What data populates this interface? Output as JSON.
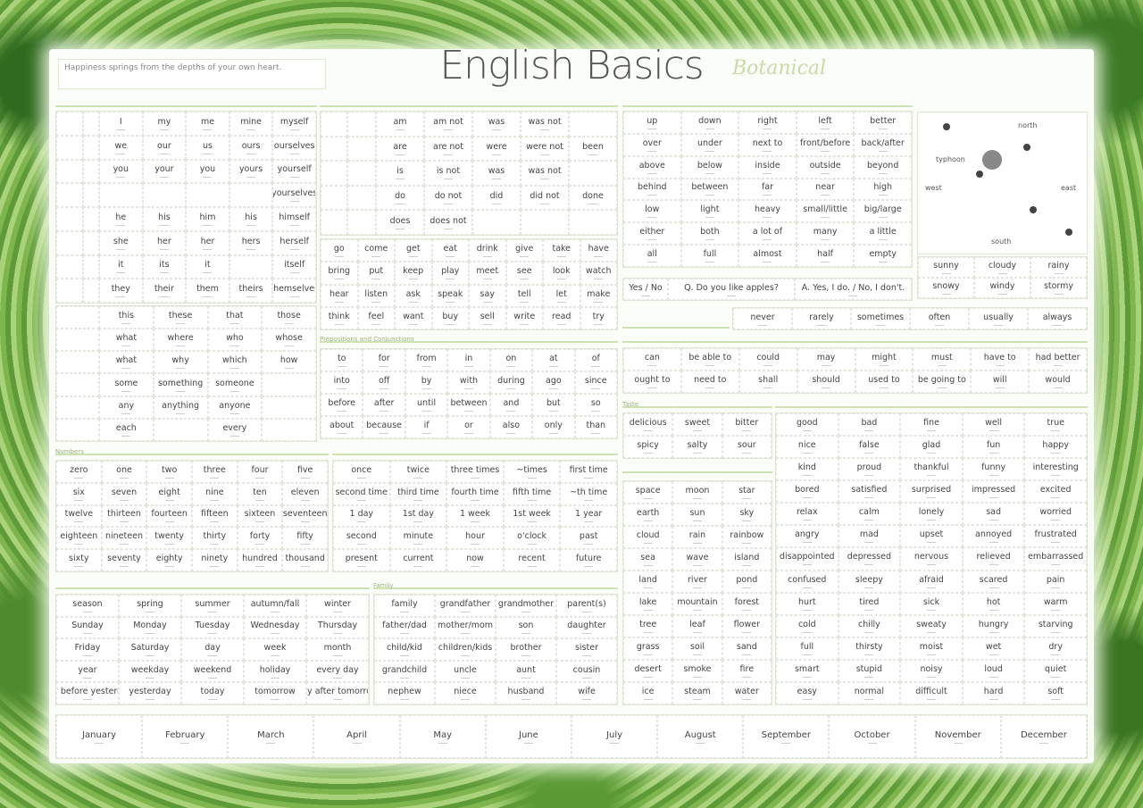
{
  "header": {
    "quote": "Happiness springs from the depths of your own heart.",
    "title": "English Basics",
    "subtitle": "Botanical"
  },
  "section_labels": {
    "prepositions": "Prepositions and Conjunctions",
    "numbers": "Numbers",
    "family": "Family",
    "taste": "Taste"
  },
  "pronouns": [
    [
      "",
      "",
      "I",
      "my",
      "me",
      "mine",
      "myself"
    ],
    [
      "",
      "",
      "we",
      "our",
      "us",
      "ours",
      "ourselves"
    ],
    [
      "",
      "",
      "you",
      "your",
      "you",
      "yours",
      "yourself"
    ],
    [
      "",
      "",
      "",
      "",
      "",
      "",
      "yourselves"
    ],
    [
      "",
      "",
      "he",
      "his",
      "him",
      "his",
      "himself"
    ],
    [
      "",
      "",
      "she",
      "her",
      "her",
      "hers",
      "herself"
    ],
    [
      "",
      "",
      "it",
      "its",
      "it",
      "",
      "itself"
    ],
    [
      "",
      "",
      "they",
      "their",
      "them",
      "theirs",
      "themselves"
    ]
  ],
  "demonstratives": [
    [
      "",
      "this",
      "these",
      "that",
      "those"
    ],
    [
      "",
      "what",
      "where",
      "who",
      "whose"
    ],
    [
      "",
      "what",
      "why",
      "which",
      "how"
    ],
    [
      "",
      "some",
      "something",
      "someone",
      ""
    ],
    [
      "",
      "any",
      "anything",
      "anyone",
      ""
    ],
    [
      "",
      "each",
      "",
      "every",
      ""
    ]
  ],
  "be_verbs": [
    [
      "",
      "",
      "am",
      "am not",
      "was",
      "was not",
      ""
    ],
    [
      "",
      "",
      "are",
      "are not",
      "were",
      "were not",
      "been"
    ],
    [
      "",
      "",
      "is",
      "is not",
      "was",
      "was not",
      ""
    ],
    [
      "",
      "",
      "do",
      "do not",
      "did",
      "did not",
      "done"
    ],
    [
      "",
      "",
      "does",
      "does not",
      "",
      "",
      ""
    ]
  ],
  "verbs": [
    [
      "go",
      "come",
      "get",
      "eat",
      "drink",
      "give",
      "take",
      "have"
    ],
    [
      "bring",
      "put",
      "keep",
      "play",
      "meet",
      "see",
      "look",
      "watch"
    ],
    [
      "hear",
      "listen",
      "ask",
      "speak",
      "say",
      "tell",
      "let",
      "make"
    ],
    [
      "think",
      "feel",
      "want",
      "buy",
      "sell",
      "write",
      "read",
      "try"
    ]
  ],
  "prepositions": [
    [
      "to",
      "for",
      "from",
      "in",
      "on",
      "at",
      "of"
    ],
    [
      "into",
      "off",
      "by",
      "with",
      "during",
      "ago",
      "since"
    ],
    [
      "before",
      "after",
      "until",
      "between",
      "and",
      "but",
      "so"
    ],
    [
      "about",
      "because",
      "if",
      "or",
      "also",
      "only",
      "than"
    ]
  ],
  "positions": [
    [
      "up",
      "down",
      "right",
      "left",
      "better"
    ],
    [
      "over",
      "under",
      "next to",
      "front/before",
      "back/after"
    ],
    [
      "above",
      "below",
      "inside",
      "outside",
      "beyond"
    ],
    [
      "behind",
      "between",
      "far",
      "near",
      "high"
    ],
    [
      "low",
      "light",
      "heavy",
      "small/little",
      "big/large"
    ],
    [
      "either",
      "both",
      "a lot of",
      "many",
      "a little"
    ],
    [
      "all",
      "full",
      "almost",
      "half",
      "empty"
    ]
  ],
  "yes_no": [
    "Yes / No",
    "Q. Do you like apples?",
    "A. Yes, I do. / No, I don't."
  ],
  "map": {
    "north": "north",
    "south": "south",
    "east": "east",
    "west": "west",
    "typhoon": "typhoon"
  },
  "weather": [
    [
      "sunny",
      "cloudy",
      "rainy"
    ],
    [
      "snowy",
      "windy",
      "stormy"
    ]
  ],
  "frequency": [
    [
      "never",
      "rarely",
      "sometimes",
      "often",
      "usually",
      "always"
    ]
  ],
  "auxiliary": [
    [
      "can",
      "be able to",
      "could",
      "may",
      "might",
      "must",
      "have to",
      "had better"
    ],
    [
      "ought to",
      "need to",
      "shall",
      "should",
      "used to",
      "be going to",
      "will",
      "would"
    ]
  ],
  "numbers": [
    [
      "zero",
      "one",
      "two",
      "three",
      "four",
      "five"
    ],
    [
      "six",
      "seven",
      "eight",
      "nine",
      "ten",
      "eleven"
    ],
    [
      "twelve",
      "thirteen",
      "fourteen",
      "fifteen",
      "sixteen",
      "seventeen"
    ],
    [
      "eighteen",
      "nineteen",
      "twenty",
      "thirty",
      "forty",
      "fifty"
    ],
    [
      "sixty",
      "seventy",
      "eighty",
      "ninety",
      "hundred",
      "thousand"
    ]
  ],
  "time": [
    [
      "once",
      "twice",
      "three times",
      "~times",
      "first time"
    ],
    [
      "second time",
      "third time",
      "fourth time",
      "fifth time",
      "~th time"
    ],
    [
      "1 day",
      "1st day",
      "1 week",
      "1st week",
      "1 year"
    ],
    [
      "second",
      "minute",
      "hour",
      "o'clock",
      "past"
    ],
    [
      "present",
      "current",
      "now",
      "recent",
      "future"
    ]
  ],
  "calendar": [
    [
      "season",
      "spring",
      "summer",
      "autumn/fall",
      "winter"
    ],
    [
      "Sunday",
      "Monday",
      "Tuesday",
      "Wednesday",
      "Thursday"
    ],
    [
      "Friday",
      "Saturday",
      "day",
      "week",
      "month"
    ],
    [
      "year",
      "weekday",
      "weekend",
      "holiday",
      "every day"
    ],
    [
      "day before yesterday",
      "yesterday",
      "today",
      "tomorrow",
      "day after tomorrow"
    ]
  ],
  "family": [
    [
      "family",
      "grandfather",
      "grandmother",
      "parent(s)"
    ],
    [
      "father/dad",
      "mother/mom",
      "son",
      "daughter"
    ],
    [
      "child/kid",
      "children/kids",
      "brother",
      "sister"
    ],
    [
      "grandchild",
      "uncle",
      "aunt",
      "cousin"
    ],
    [
      "nephew",
      "niece",
      "husband",
      "wife"
    ]
  ],
  "taste": [
    [
      "delicious",
      "sweet",
      "bitter"
    ],
    [
      "spicy",
      "salty",
      "sour"
    ]
  ],
  "nature": [
    [
      "space",
      "moon",
      "star"
    ],
    [
      "earth",
      "sun",
      "sky"
    ],
    [
      "cloud",
      "rain",
      "rainbow"
    ],
    [
      "sea",
      "wave",
      "island"
    ],
    [
      "land",
      "river",
      "pond"
    ],
    [
      "lake",
      "mountain",
      "forest"
    ],
    [
      "tree",
      "leaf",
      "flower"
    ],
    [
      "grass",
      "soil",
      "sand"
    ],
    [
      "desert",
      "smoke",
      "fire"
    ],
    [
      "ice",
      "steam",
      "water"
    ]
  ],
  "feelings": [
    [
      "good",
      "bad",
      "fine",
      "well",
      "true"
    ],
    [
      "nice",
      "false",
      "glad",
      "fun",
      "happy"
    ],
    [
      "kind",
      "proud",
      "thankful",
      "funny",
      "interesting"
    ],
    [
      "bored",
      "satisfied",
      "surprised",
      "impressed",
      "excited"
    ],
    [
      "relax",
      "calm",
      "lonely",
      "sad",
      "worried"
    ],
    [
      "angry",
      "mad",
      "upset",
      "annoyed",
      "frustrated"
    ],
    [
      "disappointed",
      "depressed",
      "nervous",
      "relieved",
      "embarrassed"
    ],
    [
      "confused",
      "sleepy",
      "afraid",
      "scared",
      "pain"
    ],
    [
      "hurt",
      "tired",
      "sick",
      "hot",
      "warm"
    ],
    [
      "cold",
      "chilly",
      "sweaty",
      "hungry",
      "starving"
    ],
    [
      "full",
      "thirsty",
      "moist",
      "wet",
      "dry"
    ],
    [
      "smart",
      "stupid",
      "noisy",
      "loud",
      "quiet"
    ],
    [
      "easy",
      "normal",
      "difficult",
      "hard",
      "soft"
    ]
  ],
  "months": [
    [
      "January",
      "February",
      "March",
      "April",
      "May",
      "June",
      "July",
      "August",
      "September",
      "October",
      "November",
      "December"
    ]
  ],
  "colors": {
    "accent": "#cfe2b3",
    "border_leaf": "#5e9a37",
    "text": "#444444"
  }
}
